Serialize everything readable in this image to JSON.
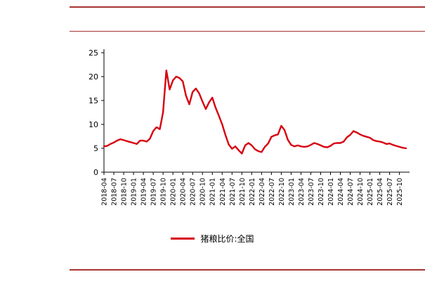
{
  "colors": {
    "series": "#d7000f",
    "rule": "#a63532",
    "axis": "#000000"
  },
  "legend": {
    "label": "猪粮比价:全国"
  },
  "chart_data": {
    "type": "line",
    "title": "",
    "xlabel": "",
    "ylabel": "",
    "ylim": [
      0,
      25
    ],
    "yticks": [
      0,
      5,
      10,
      15,
      20,
      25
    ],
    "xtick_every": 3,
    "grid": false,
    "legend_position": "bottom",
    "x": [
      "2018-04",
      "2018-05",
      "2018-06",
      "2018-07",
      "2018-08",
      "2018-09",
      "2018-10",
      "2018-11",
      "2018-12",
      "2019-01",
      "2019-02",
      "2019-03",
      "2019-04",
      "2019-05",
      "2019-06",
      "2019-07",
      "2019-08",
      "2019-09",
      "2019-10",
      "2019-11",
      "2019-12",
      "2020-01",
      "2020-02",
      "2020-03",
      "2020-04",
      "2020-05",
      "2020-06",
      "2020-07",
      "2020-08",
      "2020-09",
      "2020-10",
      "2020-11",
      "2020-12",
      "2021-01",
      "2021-02",
      "2021-03",
      "2021-04",
      "2021-05",
      "2021-06",
      "2021-07",
      "2021-08",
      "2021-09",
      "2021-10",
      "2021-11",
      "2021-12",
      "2022-01",
      "2022-02",
      "2022-03",
      "2022-04",
      "2022-05",
      "2022-06",
      "2022-07",
      "2022-08",
      "2022-09",
      "2022-10",
      "2022-11",
      "2022-12",
      "2023-01",
      "2023-02",
      "2023-03",
      "2023-04",
      "2023-05",
      "2023-06",
      "2023-07",
      "2023-08",
      "2023-09",
      "2023-10",
      "2023-11",
      "2023-12",
      "2024-01",
      "2024-02",
      "2024-03",
      "2024-04",
      "2024-05",
      "2024-06",
      "2024-07",
      "2024-08",
      "2024-09",
      "2024-10",
      "2024-11",
      "2024-12",
      "2025-01",
      "2025-02",
      "2025-03",
      "2025-04",
      "2025-05",
      "2025-06",
      "2025-07",
      "2025-08",
      "2025-09",
      "2025-10",
      "2025-11",
      "2025-12"
    ],
    "series": [
      {
        "name": "猪粮比价:全国",
        "values": [
          5.4,
          5.5,
          5.9,
          6.2,
          6.6,
          6.9,
          6.7,
          6.5,
          6.3,
          6.1,
          5.9,
          6.6,
          6.6,
          6.4,
          7.0,
          8.6,
          9.4,
          9.0,
          12.5,
          21.3,
          17.3,
          19.2,
          20.0,
          19.7,
          19.0,
          16.0,
          14.2,
          16.8,
          17.5,
          16.5,
          14.8,
          13.2,
          14.6,
          15.6,
          13.5,
          11.8,
          10.0,
          7.8,
          5.8,
          4.9,
          5.4,
          4.6,
          3.9,
          5.6,
          6.1,
          5.6,
          4.8,
          4.4,
          4.2,
          5.3,
          6.0,
          7.4,
          7.7,
          7.9,
          9.7,
          8.8,
          6.8,
          5.7,
          5.4,
          5.6,
          5.4,
          5.3,
          5.4,
          5.7,
          6.1,
          5.9,
          5.6,
          5.3,
          5.2,
          5.5,
          6.0,
          6.1,
          6.1,
          6.4,
          7.3,
          7.8,
          8.6,
          8.3,
          7.9,
          7.6,
          7.4,
          7.2,
          6.7,
          6.5,
          6.4,
          6.2,
          5.9,
          6.0,
          5.7,
          5.5,
          5.3,
          5.1,
          5.0
        ]
      }
    ]
  }
}
